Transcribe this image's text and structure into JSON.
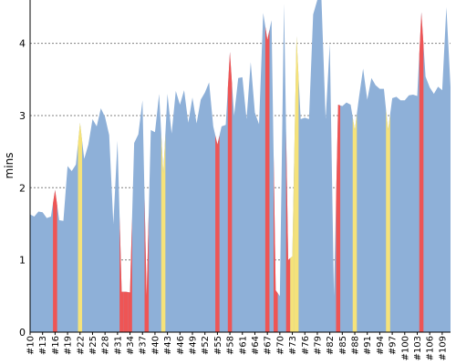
{
  "chart_data": {
    "type": "area",
    "ylabel": "mins",
    "ylim": [
      0,
      4.6
    ],
    "yticks": [
      "0",
      "1",
      "2",
      "3",
      "4"
    ],
    "grid": "horizontal dashed",
    "x_start": 10,
    "x_tick_labels": [
      "#10",
      "#13",
      "#16",
      "#19",
      "#22",
      "#25",
      "#28",
      "#31",
      "#34",
      "#37",
      "#40",
      "#43",
      "#46",
      "#49",
      "#52",
      "#55",
      "#58",
      "#61",
      "#64",
      "#67",
      "#70",
      "#73",
      "#76",
      "#79",
      "#82",
      "#85",
      "#88",
      "#91",
      "#94",
      "#97",
      "#100",
      "#103",
      "#106",
      "#109"
    ],
    "values": [
      1.63,
      1.6,
      1.67,
      1.66,
      1.58,
      1.6,
      1.97,
      1.55,
      1.54,
      2.3,
      2.23,
      2.32,
      2.9,
      2.4,
      2.6,
      2.95,
      2.85,
      3.1,
      2.98,
      2.73,
      1.5,
      2.65,
      0.56,
      0.56,
      0.55,
      2.62,
      2.74,
      3.21,
      0.5,
      2.8,
      2.77,
      3.3,
      2.2,
      3.3,
      2.75,
      3.34,
      3.15,
      3.35,
      2.9,
      3.25,
      2.89,
      3.22,
      3.32,
      3.46,
      2.85,
      2.6,
      2.85,
      2.87,
      3.88,
      3.0,
      3.52,
      3.53,
      2.95,
      3.74,
      3.04,
      2.88,
      4.42,
      4.05,
      4.32,
      0.58,
      0.5,
      4.55,
      1.0,
      1.05,
      4.1,
      2.95,
      2.97,
      2.95,
      4.4,
      5.0,
      4.7,
      2.95,
      4.0,
      0.5,
      3.15,
      3.13,
      3.18,
      3.15,
      2.8,
      3.25,
      3.65,
      3.22,
      3.52,
      3.42,
      3.37,
      3.37,
      2.8,
      3.24,
      3.26,
      3.21,
      3.21,
      3.28,
      3.29,
      3.27,
      4.43,
      3.54,
      3.39,
      3.3,
      3.4,
      3.35,
      4.5,
      3.4
    ],
    "series": [
      {
        "color": "#8eb0d8",
        "highlighted_indices": []
      },
      {
        "color": "#ee5555",
        "highlighted_indices": [
          6,
          22,
          23,
          24,
          28,
          45,
          48,
          57,
          59,
          62,
          74,
          94
        ]
      },
      {
        "color": "#f5e27a",
        "highlighted_indices": [
          12,
          32,
          63,
          64,
          78,
          86
        ]
      }
    ]
  }
}
